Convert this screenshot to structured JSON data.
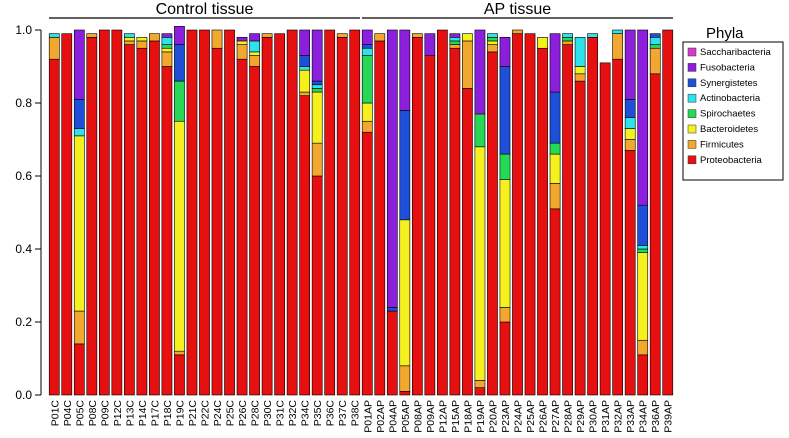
{
  "chart_data": {
    "type": "bar",
    "stacked": true,
    "title": "",
    "xlabel": "",
    "ylabel": "",
    "ylim": [
      0,
      1
    ],
    "yticks": [
      "0.0",
      "0.2",
      "0.4",
      "0.6",
      "0.8",
      "1.0"
    ],
    "groups": [
      {
        "label": "Control tissue",
        "first": 0,
        "last": 24
      },
      {
        "label": "AP tissue",
        "first": 25,
        "last": 49
      }
    ],
    "legend": {
      "title": "Phyla",
      "position": "right",
      "items": [
        {
          "name": "Saccharibacteria",
          "color": "#d43dc8"
        },
        {
          "name": "Fusobacteria",
          "color": "#8b1fdc"
        },
        {
          "name": "Synergistetes",
          "color": "#1f4ed8"
        },
        {
          "name": "Actinobacteria",
          "color": "#2ee1ea"
        },
        {
          "name": "Spirochaetes",
          "color": "#27d856"
        },
        {
          "name": "Bacteroidetes",
          "color": "#f5f11f"
        },
        {
          "name": "Firmicutes",
          "color": "#f2a72e"
        },
        {
          "name": "Proteobacteria",
          "color": "#e5100f"
        }
      ]
    },
    "series_order": [
      "Proteobacteria",
      "Firmicutes",
      "Bacteroidetes",
      "Spirochaetes",
      "Actinobacteria",
      "Synergistetes",
      "Fusobacteria",
      "Saccharibacteria"
    ],
    "categories": [
      "P01C",
      "P04C",
      "P05C",
      "P08C",
      "P09C",
      "P12C",
      "P13C",
      "P14C",
      "P17C",
      "P18C",
      "P19C",
      "P21C",
      "P22C",
      "P24C",
      "P25C",
      "P26C",
      "P28C",
      "P30C",
      "P31C",
      "P32C",
      "P34C",
      "P35C",
      "P36C",
      "P37C",
      "P38C",
      "P01AP",
      "P02AP",
      "P04AP",
      "P05AP",
      "P08AP",
      "P09AP",
      "P12AP",
      "P15AP",
      "P18AP",
      "P19AP",
      "P20AP",
      "P23AP",
      "P24AP",
      "P25AP",
      "P26AP",
      "P27AP",
      "P28AP",
      "P29AP",
      "P30AP",
      "P31AP",
      "P32AP",
      "P33AP",
      "P34AP",
      "P36AP",
      "P39AP"
    ],
    "series": [
      {
        "name": "Proteobacteria",
        "values": [
          0.92,
          0.99,
          0.14,
          0.98,
          1.0,
          1.0,
          0.96,
          0.95,
          0.97,
          0.9,
          0.11,
          1.0,
          1.0,
          0.95,
          1.0,
          0.92,
          0.9,
          0.98,
          0.99,
          1.0,
          0.82,
          0.6,
          1.0,
          0.98,
          1.0,
          0.72,
          0.97,
          0.23,
          0.01,
          0.98,
          0.93,
          1.0,
          0.95,
          0.84,
          0.02,
          0.94,
          0.2,
          0.99,
          0.99,
          0.95,
          0.51,
          0.96,
          0.86,
          0.98,
          0.91,
          0.92,
          0.67,
          0.11,
          0.88,
          1.0
        ]
      },
      {
        "name": "Firmicutes",
        "values": [
          0.06,
          0.0,
          0.09,
          0.01,
          0.0,
          0.0,
          0.01,
          0.02,
          0.02,
          0.04,
          0.01,
          0.0,
          0.0,
          0.05,
          0.0,
          0.04,
          0.03,
          0.01,
          0.0,
          0.0,
          0.01,
          0.09,
          0.0,
          0.01,
          0.0,
          0.03,
          0.02,
          0.0,
          0.07,
          0.01,
          0.0,
          0.0,
          0.01,
          0.13,
          0.02,
          0.02,
          0.04,
          0.01,
          0.0,
          0.0,
          0.07,
          0.01,
          0.02,
          0.0,
          0.0,
          0.07,
          0.03,
          0.04,
          0.07,
          0.0
        ]
      },
      {
        "name": "Bacteroidetes",
        "values": [
          0.0,
          0.0,
          0.48,
          0.0,
          0.0,
          0.0,
          0.01,
          0.01,
          0.0,
          0.01,
          0.63,
          0.0,
          0.0,
          0.0,
          0.0,
          0.01,
          0.01,
          0.0,
          0.0,
          0.0,
          0.06,
          0.14,
          0.0,
          0.0,
          0.0,
          0.05,
          0.0,
          0.0,
          0.4,
          0.0,
          0.0,
          0.0,
          0.0,
          0.02,
          0.64,
          0.01,
          0.35,
          0.0,
          0.0,
          0.03,
          0.08,
          0.0,
          0.02,
          0.0,
          0.0,
          0.0,
          0.03,
          0.24,
          0.0,
          0.0
        ]
      },
      {
        "name": "Spirochaetes",
        "values": [
          0.0,
          0.0,
          0.0,
          0.0,
          0.0,
          0.0,
          0.0,
          0.0,
          0.0,
          0.01,
          0.11,
          0.0,
          0.0,
          0.0,
          0.0,
          0.0,
          0.0,
          0.0,
          0.0,
          0.0,
          0.0,
          0.01,
          0.0,
          0.0,
          0.0,
          0.13,
          0.0,
          0.0,
          0.0,
          0.0,
          0.0,
          0.0,
          0.01,
          0.0,
          0.09,
          0.01,
          0.07,
          0.0,
          0.0,
          0.0,
          0.03,
          0.01,
          0.0,
          0.0,
          0.0,
          0.0,
          0.0,
          0.01,
          0.01,
          0.0
        ]
      },
      {
        "name": "Actinobacteria",
        "values": [
          0.01,
          0.0,
          0.02,
          0.0,
          0.0,
          0.0,
          0.01,
          0.0,
          0.0,
          0.02,
          0.0,
          0.0,
          0.0,
          0.0,
          0.0,
          0.0,
          0.03,
          0.0,
          0.0,
          0.0,
          0.01,
          0.01,
          0.0,
          0.0,
          0.0,
          0.02,
          0.0,
          0.0,
          0.0,
          0.0,
          0.0,
          0.0,
          0.01,
          0.0,
          0.0,
          0.01,
          0.0,
          0.0,
          0.0,
          0.0,
          0.0,
          0.01,
          0.08,
          0.01,
          0.0,
          0.01,
          0.03,
          0.01,
          0.02,
          0.0
        ]
      },
      {
        "name": "Synergistetes",
        "values": [
          0.0,
          0.0,
          0.08,
          0.0,
          0.0,
          0.0,
          0.0,
          0.0,
          0.0,
          0.0,
          0.1,
          0.0,
          0.0,
          0.0,
          0.0,
          0.0,
          0.0,
          0.0,
          0.0,
          0.0,
          0.03,
          0.01,
          0.0,
          0.0,
          0.0,
          0.01,
          0.0,
          0.01,
          0.3,
          0.0,
          0.0,
          0.0,
          0.0,
          0.0,
          0.0,
          0.0,
          0.24,
          0.0,
          0.0,
          0.0,
          0.14,
          0.0,
          0.0,
          0.0,
          0.0,
          0.0,
          0.05,
          0.11,
          0.01,
          0.0
        ]
      },
      {
        "name": "Fusobacteria",
        "values": [
          0.0,
          0.0,
          0.19,
          0.0,
          0.0,
          0.0,
          0.0,
          0.0,
          0.0,
          0.01,
          0.05,
          0.0,
          0.0,
          0.0,
          0.0,
          0.01,
          0.02,
          0.0,
          0.0,
          0.0,
          0.07,
          0.14,
          0.0,
          0.0,
          0.0,
          0.04,
          0.0,
          0.76,
          0.22,
          0.0,
          0.06,
          0.0,
          0.01,
          0.0,
          0.23,
          0.0,
          0.08,
          0.0,
          0.0,
          0.0,
          0.16,
          0.0,
          0.0,
          0.0,
          0.0,
          0.0,
          0.19,
          0.48,
          0.0,
          0.0
        ]
      },
      {
        "name": "Saccharibacteria",
        "values": [
          0.0,
          0.0,
          0.0,
          0.0,
          0.0,
          0.0,
          0.0,
          0.0,
          0.0,
          0.0,
          0.0,
          0.0,
          0.0,
          0.0,
          0.0,
          0.0,
          0.0,
          0.0,
          0.0,
          0.0,
          0.0,
          0.0,
          0.0,
          0.0,
          0.0,
          0.0,
          0.0,
          0.0,
          0.0,
          0.0,
          0.0,
          0.0,
          0.0,
          0.0,
          0.0,
          0.0,
          0.0,
          0.0,
          0.0,
          0.0,
          0.0,
          0.0,
          0.0,
          0.0,
          0.0,
          0.0,
          0.0,
          0.0,
          0.0,
          0.0
        ]
      }
    ]
  }
}
